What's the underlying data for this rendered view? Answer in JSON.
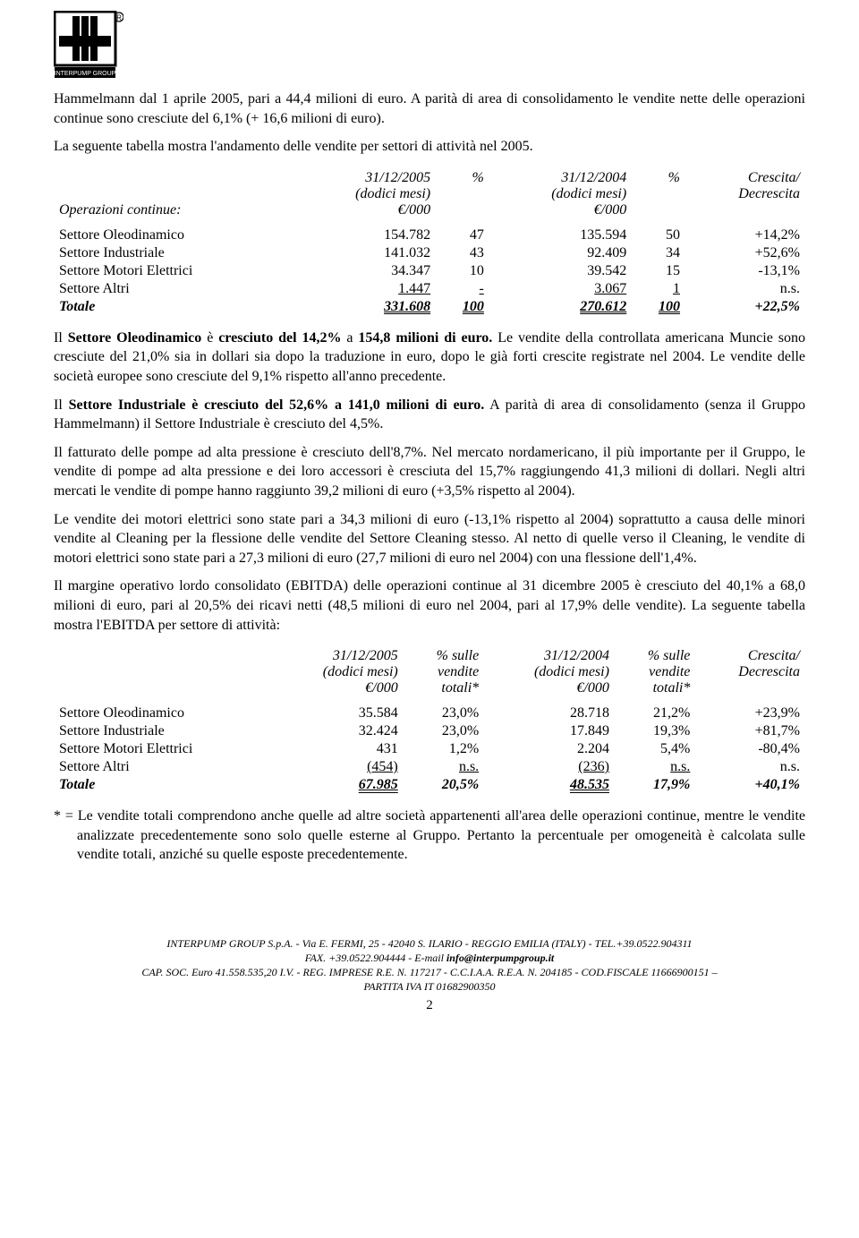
{
  "para1": "Hammelmann dal 1 aprile 2005, pari a 44,4 milioni di euro. A parità di area di consolidamento le vendite nette delle operazioni continue sono cresciute del 6,1% (+ 16,6 milioni di euro).",
  "para2": "La seguente tabella mostra l'andamento delle vendite per settori di attività nel 2005.",
  "t1": {
    "header": {
      "rowlabel": "Operazioni continue:",
      "col1_l1": "31/12/2005",
      "col1_l2": "(dodici mesi)",
      "col1_l3": "€/000",
      "col2": "%",
      "col3_l1": "31/12/2004",
      "col3_l2": "(dodici mesi)",
      "col3_l3": "€/000",
      "col4": "%",
      "col5_l1": "Crescita/",
      "col5_l2": "Decrescita"
    },
    "rows": [
      {
        "label": "Settore Oleodinamico",
        "v1": "154.782",
        "p1": "47",
        "v2": "135.594",
        "p2": "50",
        "g": "+14,2%"
      },
      {
        "label": "Settore Industriale",
        "v1": "141.032",
        "p1": "43",
        "v2": "92.409",
        "p2": "34",
        "g": "+52,6%"
      },
      {
        "label": "Settore Motori Elettrici",
        "v1": "34.347",
        "p1": "10",
        "v2": "39.542",
        "p2": "15",
        "g": "-13,1%"
      },
      {
        "label": "Settore Altri",
        "v1": "1.447",
        "p1": "-",
        "v2": "3.067",
        "p2": "1",
        "g": "n.s.",
        "ul": true
      }
    ],
    "total": {
      "label": "Totale",
      "v1": "331.608",
      "p1": "100",
      "v2": "270.612",
      "p2": "100",
      "g": "+22,5%"
    }
  },
  "para3_pre": "Il ",
  "para3_bold": "Settore Oleodinamico",
  "para3_post": " è ",
  "para3_bold2": "cresciuto del 14,2%",
  "para3_rest": " a ",
  "para3_bold3": "154,8 milioni di euro.",
  "para3_tail": " Le vendite della controllata americana Muncie sono cresciute del 21,0% sia in dollari sia dopo la traduzione in euro, dopo le già forti crescite registrate nel 2004. Le vendite delle società europee sono cresciute del 9,1% rispetto all'anno precedente.",
  "para4_pre": "Il ",
  "para4_bold": "Settore Industriale è cresciuto del 52,6% a 141,0 milioni di euro.",
  "para4_tail": " A parità di area di consolidamento (senza il Gruppo Hammelmann) il Settore Industriale è cresciuto del 4,5%.",
  "para5": "Il fatturato delle pompe ad alta pressione è cresciuto dell'8,7%. Nel mercato nordamericano, il più importante per il Gruppo, le vendite di pompe ad alta pressione e dei loro accessori è cresciuta del 15,7% raggiungendo 41,3 milioni di dollari. Negli altri mercati le vendite di pompe hanno raggiunto 39,2 milioni di euro (+3,5% rispetto al 2004).",
  "para6": "Le vendite dei motori elettrici sono state pari a 34,3 milioni di euro (-13,1% rispetto al 2004) soprattutto a causa delle minori vendite al Cleaning per la flessione delle vendite del Settore Cleaning stesso. Al netto di quelle verso il Cleaning, le vendite di motori elettrici sono state pari a 27,3 milioni di euro (27,7 milioni di euro nel 2004) con una flessione dell'1,4%.",
  "para7": "Il margine operativo lordo consolidato (EBITDA)  delle operazioni continue al 31 dicembre 2005 è cresciuto del 40,1% a 68,0 milioni di euro, pari al 20,5% dei ricavi netti (48,5 milioni di euro nel 2004, pari al 17,9% delle vendite). La seguente tabella mostra l'EBITDA per settore di attività:",
  "t2": {
    "header": {
      "col1_l1": "31/12/2005",
      "col1_l2": "(dodici mesi)",
      "col1_l3": "€/000",
      "col2_l1": "% sulle",
      "col2_l2": "vendite",
      "col2_l3": "totali*",
      "col3_l1": "31/12/2004",
      "col3_l2": "(dodici mesi)",
      "col3_l3": "€/000",
      "col4_l1": "% sulle",
      "col4_l2": "vendite",
      "col4_l3": "totali*",
      "col5_l1": "Crescita/",
      "col5_l2": "Decrescita"
    },
    "rows": [
      {
        "label": "Settore Oleodinamico",
        "v1": "35.584",
        "p1": "23,0%",
        "v2": "28.718",
        "p2": "21,2%",
        "g": "+23,9%"
      },
      {
        "label": "Settore Industriale",
        "v1": "32.424",
        "p1": "23,0%",
        "v2": "17.849",
        "p2": "19,3%",
        "g": "+81,7%"
      },
      {
        "label": "Settore Motori Elettrici",
        "v1": "431",
        "p1": "1,2%",
        "v2": "2.204",
        "p2": "5,4%",
        "g": "-80,4%"
      },
      {
        "label": "Settore Altri",
        "v1": "(454)",
        "p1": "n.s.",
        "v2": "(236)",
        "p2": "n.s.",
        "g": "n.s.",
        "ul": true
      }
    ],
    "total": {
      "label": "Totale",
      "v1": "67.985",
      "p1": "20,5%",
      "v2": "48.535",
      "p2": "17,9%",
      "g": "+40,1%"
    }
  },
  "footnote": "* = Le vendite totali comprendono anche quelle ad altre società appartenenti all'area delle operazioni continue, mentre le vendite analizzate precedentemente sono solo quelle esterne al Gruppo.  Pertanto la percentuale per omogeneità è calcolata sulle vendite totali, anziché su quelle esposte precedentemente.",
  "footer": {
    "l1_a": "INTERPUMP GROUP S.p.A. - Via E. FERMI, 25 - 42040 S. ILARIO - REGGIO EMILIA (ITALY) - TEL.+39.0522.904311",
    "l2_a": "FAX. +39.0522.904444 - E-mail ",
    "l2_b": "info@interpumpgroup.it",
    "l3": "CAP. SOC. Euro 41.558.535,20 I.V. - REG. IMPRESE R.E. N. 117217 - C.C.I.A.A. R.E.A. N. 204185 - COD.FISCALE 11666900151 –",
    "l4": "PARTITA IVA IT 01682900350"
  },
  "pagenum": "2",
  "colors": {
    "text": "#000000",
    "bg": "#ffffff",
    "logo_border": "#000000",
    "logo_fill": "#ffffff"
  }
}
